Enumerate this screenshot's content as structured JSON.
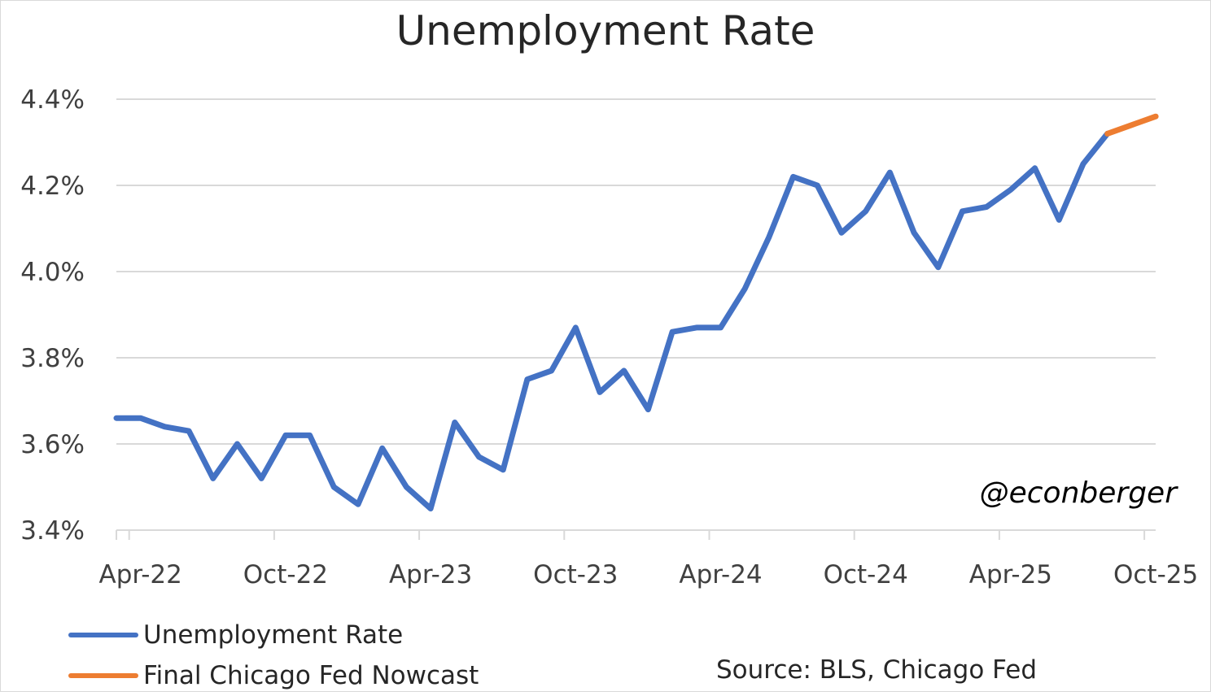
{
  "chart_data": {
    "type": "line",
    "title": "Unemployment Rate",
    "xlabel": "",
    "ylabel": "",
    "ylim": [
      3.4,
      4.4
    ],
    "y_ticks": [
      "3.4%",
      "3.6%",
      "3.8%",
      "4.0%",
      "4.2%",
      "4.4%"
    ],
    "y_tick_values": [
      3.4,
      3.6,
      3.8,
      4.0,
      4.2,
      4.4
    ],
    "x_ticks": [
      "Apr-22",
      "Oct-22",
      "Apr-23",
      "Oct-23",
      "Apr-24",
      "Oct-24",
      "Apr-25",
      "Oct-25"
    ],
    "x_tick_months": [
      "2022-04",
      "2022-10",
      "2023-04",
      "2023-10",
      "2024-04",
      "2024-10",
      "2025-04",
      "2025-10"
    ],
    "grid": true,
    "legend_position": "bottom-left",
    "series": [
      {
        "name": "Unemployment Rate",
        "color": "#4472C4",
        "x": [
          "2022-03",
          "2022-04",
          "2022-05",
          "2022-06",
          "2022-07",
          "2022-08",
          "2022-09",
          "2022-10",
          "2022-11",
          "2022-12",
          "2023-01",
          "2023-02",
          "2023-03",
          "2023-04",
          "2023-05",
          "2023-06",
          "2023-07",
          "2023-08",
          "2023-09",
          "2023-10",
          "2023-11",
          "2023-12",
          "2024-01",
          "2024-02",
          "2024-03",
          "2024-04",
          "2024-05",
          "2024-06",
          "2024-07",
          "2024-08",
          "2024-09",
          "2024-10",
          "2024-11",
          "2024-12",
          "2025-01",
          "2025-02",
          "2025-03",
          "2025-04",
          "2025-05",
          "2025-06",
          "2025-07",
          "2025-08"
        ],
        "values": [
          3.66,
          3.66,
          3.64,
          3.63,
          3.52,
          3.6,
          3.52,
          3.62,
          3.62,
          3.5,
          3.46,
          3.59,
          3.5,
          3.45,
          3.65,
          3.57,
          3.54,
          3.75,
          3.77,
          3.87,
          3.72,
          3.77,
          3.68,
          3.86,
          3.87,
          3.87,
          3.96,
          4.08,
          4.22,
          4.2,
          4.09,
          4.14,
          4.23,
          4.09,
          4.01,
          4.14,
          4.15,
          4.19,
          4.24,
          4.12,
          4.25,
          4.32
        ]
      },
      {
        "name": "Final Chicago Fed Nowcast",
        "color": "#ED7D31",
        "x": [
          "2025-08",
          "2025-09",
          "2025-10"
        ],
        "values": [
          4.32,
          4.34,
          4.36
        ]
      }
    ]
  },
  "watermark": "@econberger",
  "source": "Source: BLS, Chicago Fed"
}
